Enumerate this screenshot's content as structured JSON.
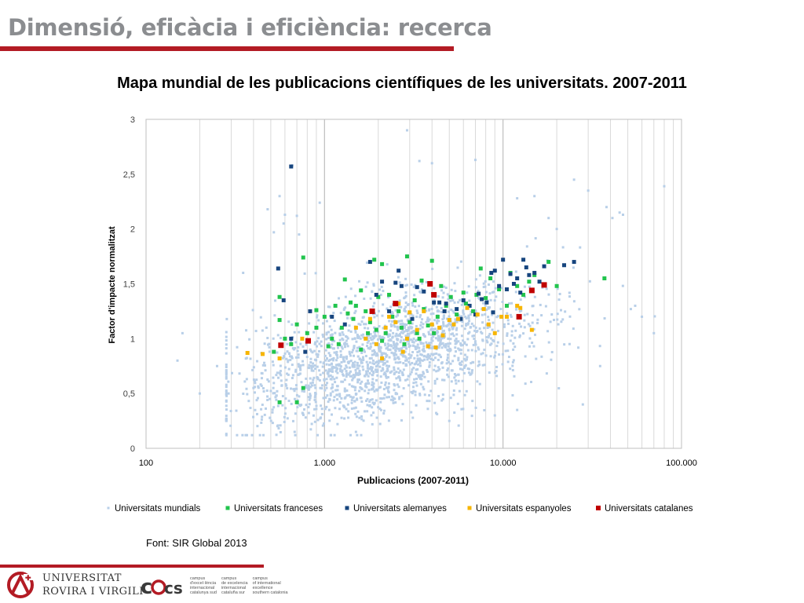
{
  "slide": {
    "title": "Dimensió, eficàcia i eficiència: recerca",
    "source": "Font: SIR Global 2013",
    "accent_color": "#b31b24",
    "title_color": "#8b8d90"
  },
  "chart_data": {
    "type": "scatter",
    "title": "Mapa mundial de les publicacions científiques de les universitats. 2007-2011",
    "xlabel": "Publicacions  (2007-2011)",
    "ylabel": "Factor d'impacte normalitzat",
    "x_scale": "log",
    "xlim": [
      100,
      100000
    ],
    "ylim": [
      0,
      3
    ],
    "x_ticks": [
      100,
      1000,
      10000,
      100000
    ],
    "x_tick_labels": [
      "100",
      "1.000",
      "10.000",
      "100.000"
    ],
    "y_ticks": [
      0,
      0.5,
      1,
      1.5,
      2,
      2.5,
      3
    ],
    "y_tick_labels": [
      "0",
      "0,5",
      "1",
      "1,5",
      "2",
      "2,5",
      "3"
    ],
    "grid": "vertical",
    "legend_position": "bottom",
    "series": [
      {
        "name": "Universitats mundials",
        "color": "#b8cfe8",
        "marker_size": 3,
        "cloud": {
          "count": 1900,
          "x_log_mean": 3.35,
          "x_log_sd": 0.42,
          "y_slope": 0.38,
          "y_sd": 0.27,
          "seed": 20130
        },
        "points": [
          [
            660,
            2.58
          ],
          [
            940,
            2.24
          ],
          [
            2900,
            2.9
          ],
          [
            3400,
            2.62
          ],
          [
            4000,
            2.6
          ],
          [
            7000,
            2.63
          ],
          [
            12000,
            2.28
          ],
          [
            15000,
            2.3
          ],
          [
            18000,
            2.1
          ],
          [
            20000,
            2.0
          ],
          [
            25000,
            2.45
          ],
          [
            30000,
            2.35
          ],
          [
            38000,
            2.2
          ],
          [
            41000,
            2.1
          ],
          [
            45000,
            2.15
          ],
          [
            47000,
            2.13
          ],
          [
            80000,
            2.39
          ],
          [
            52000,
            1.27
          ],
          [
            60000,
            1.2
          ],
          [
            70000,
            1.05
          ],
          [
            55000,
            1.3
          ],
          [
            160,
            1.05
          ],
          [
            150,
            0.8
          ],
          [
            200,
            0.5
          ],
          [
            250,
            0.75
          ],
          [
            290,
            0.5
          ],
          [
            350,
            1.6
          ],
          [
            400,
            0.55
          ],
          [
            480,
            2.18
          ],
          [
            520,
            1.97
          ],
          [
            560,
            2.3
          ],
          [
            590,
            2.05
          ],
          [
            600,
            2.13
          ],
          [
            700,
            2.12
          ],
          [
            720,
            1.95
          ],
          [
            35000,
            0.75
          ],
          [
            28000,
            0.4
          ],
          [
            12000,
            0.35
          ],
          [
            9000,
            0.3
          ],
          [
            5000,
            0.25
          ],
          [
            1500,
            0.15
          ],
          [
            680,
            0.15
          ]
        ]
      },
      {
        "name": "Universitats franceses",
        "color": "#21c44d",
        "marker_size": 5,
        "points": [
          [
            560,
            1.38
          ],
          [
            760,
            1.74
          ],
          [
            1000,
            1.2
          ],
          [
            1300,
            1.54
          ],
          [
            1400,
            1.33
          ],
          [
            1600,
            1.44
          ],
          [
            1900,
            1.72
          ],
          [
            2100,
            1.68
          ],
          [
            2900,
            1.75
          ],
          [
            3500,
            1.53
          ],
          [
            4000,
            1.71
          ],
          [
            4500,
            1.48
          ],
          [
            5100,
            1.38
          ],
          [
            6000,
            1.42
          ],
          [
            7500,
            1.64
          ],
          [
            8500,
            1.55
          ],
          [
            12000,
            1.48
          ],
          [
            14000,
            1.52
          ],
          [
            18000,
            1.7
          ],
          [
            20000,
            1.48
          ],
          [
            37000,
            1.55
          ],
          [
            560,
            1.17
          ],
          [
            600,
            1.0
          ],
          [
            520,
            0.88
          ],
          [
            560,
            0.42
          ],
          [
            700,
            0.42
          ],
          [
            760,
            0.55
          ],
          [
            650,
            0.95
          ],
          [
            700,
            1.13
          ],
          [
            800,
            1.05
          ],
          [
            900,
            1.1
          ],
          [
            1100,
            1.0
          ],
          [
            1200,
            0.95
          ],
          [
            1250,
            1.1
          ],
          [
            1350,
            1.23
          ],
          [
            1450,
            1.18
          ],
          [
            1500,
            1.3
          ],
          [
            1700,
            1.25
          ],
          [
            1800,
            1.15
          ],
          [
            1950,
            1.08
          ],
          [
            2000,
            1.38
          ],
          [
            2200,
            1.05
          ],
          [
            2300,
            1.4
          ],
          [
            2400,
            1.2
          ],
          [
            2600,
            1.25
          ],
          [
            2700,
            1.1
          ],
          [
            3000,
            1.15
          ],
          [
            3200,
            1.35
          ],
          [
            3300,
            1.05
          ],
          [
            3600,
            1.27
          ],
          [
            3800,
            1.12
          ],
          [
            4300,
            1.2
          ],
          [
            4800,
            1.3
          ],
          [
            5500,
            1.22
          ],
          [
            6200,
            1.32
          ],
          [
            6800,
            1.25
          ],
          [
            7100,
            1.4
          ],
          [
            8000,
            1.37
          ],
          [
            9500,
            1.45
          ],
          [
            10500,
            1.3
          ],
          [
            11000,
            1.6
          ],
          [
            13000,
            1.4
          ],
          [
            15000,
            1.58
          ],
          [
            1050,
            0.93
          ],
          [
            1600,
            0.9
          ],
          [
            2100,
            0.98
          ],
          [
            2800,
            0.95
          ],
          [
            3400,
            1.0
          ],
          [
            4100,
            1.05
          ],
          [
            900,
            1.26
          ],
          [
            1150,
            1.3
          ],
          [
            1750,
            1.05
          ]
        ]
      },
      {
        "name": "Universitats alemanyes",
        "color": "#17457e",
        "marker_size": 5,
        "points": [
          [
            650,
            2.57
          ],
          [
            550,
            1.64
          ],
          [
            590,
            1.35
          ],
          [
            830,
            1.25
          ],
          [
            2100,
            1.52
          ],
          [
            1800,
            1.7
          ],
          [
            2500,
            1.51
          ],
          [
            2600,
            1.62
          ],
          [
            2700,
            1.48
          ],
          [
            3300,
            1.47
          ],
          [
            3600,
            1.43
          ],
          [
            4100,
            1.33
          ],
          [
            4400,
            1.33
          ],
          [
            4800,
            1.32
          ],
          [
            5500,
            1.27
          ],
          [
            6500,
            1.3
          ],
          [
            7300,
            1.41
          ],
          [
            7600,
            1.36
          ],
          [
            8100,
            1.33
          ],
          [
            8600,
            1.6
          ],
          [
            9000,
            1.62
          ],
          [
            10000,
            1.72
          ],
          [
            10500,
            1.45
          ],
          [
            11000,
            1.59
          ],
          [
            12000,
            1.55
          ],
          [
            13000,
            1.72
          ],
          [
            13500,
            1.65
          ],
          [
            14000,
            1.58
          ],
          [
            15000,
            1.6
          ],
          [
            16000,
            1.52
          ],
          [
            17000,
            1.66
          ],
          [
            22000,
            1.67
          ],
          [
            25000,
            1.7
          ],
          [
            6000,
            1.35
          ],
          [
            5800,
            1.18
          ],
          [
            7000,
            1.22
          ],
          [
            9500,
            1.48
          ],
          [
            11500,
            1.5
          ],
          [
            12500,
            1.42
          ],
          [
            8800,
            1.24
          ],
          [
            4700,
            1.25
          ],
          [
            3100,
            1.18
          ],
          [
            2300,
            1.25
          ],
          [
            1950,
            1.4
          ],
          [
            1300,
            1.13
          ],
          [
            1100,
            1.2
          ],
          [
            780,
            0.88
          ],
          [
            650,
            1.0
          ]
        ]
      },
      {
        "name": "Universitats espanyoles",
        "color": "#f7b500",
        "marker_size": 5,
        "points": [
          [
            370,
            0.87
          ],
          [
            450,
            0.86
          ],
          [
            560,
            0.82
          ],
          [
            750,
            1.0
          ],
          [
            1500,
            1.1
          ],
          [
            1700,
            1.0
          ],
          [
            1950,
            0.95
          ],
          [
            2100,
            0.82
          ],
          [
            2200,
            1.1
          ],
          [
            2500,
            1.15
          ],
          [
            2600,
            1.32
          ],
          [
            2750,
            0.88
          ],
          [
            3000,
            1.24
          ],
          [
            3300,
            1.08
          ],
          [
            3600,
            1.25
          ],
          [
            3800,
            0.93
          ],
          [
            4000,
            1.13
          ],
          [
            4200,
            0.92
          ],
          [
            4600,
            1.03
          ],
          [
            5000,
            1.17
          ],
          [
            5300,
            1.13
          ],
          [
            5600,
            1.18
          ],
          [
            6300,
            1.28
          ],
          [
            7200,
            1.22
          ],
          [
            7800,
            1.27
          ],
          [
            8300,
            1.13
          ],
          [
            9000,
            1.05
          ],
          [
            9800,
            1.2
          ],
          [
            10500,
            1.2
          ],
          [
            12000,
            1.3
          ],
          [
            14500,
            1.08
          ],
          [
            12500,
            1.28
          ],
          [
            1800,
            1.18
          ],
          [
            2300,
            1.2
          ],
          [
            2900,
            1.0
          ],
          [
            4400,
            1.1
          ]
        ]
      },
      {
        "name": "Universitats catalanes",
        "color": "#c00000",
        "marker_size": 7,
        "points": [
          [
            570,
            0.94
          ],
          [
            810,
            0.98
          ],
          [
            1850,
            1.25
          ],
          [
            2500,
            1.32
          ],
          [
            3900,
            1.5
          ],
          [
            4100,
            1.4
          ],
          [
            12300,
            1.2
          ],
          [
            14500,
            1.44
          ],
          [
            17000,
            1.49
          ]
        ]
      }
    ]
  },
  "logos": {
    "urv": {
      "line1": "UNIVERSITAT",
      "line2": "ROVIRA I VIRGILI"
    },
    "cei": {
      "mark": "cei cs",
      "col1": "campus\nd'excel·lència\ninternacional\ncatalunya sud",
      "col2": "campus\nde excelencia\ninternacional\ncataluña sur",
      "col3": "campus\nof international\nexcellence\nsouthern catalonia"
    }
  }
}
